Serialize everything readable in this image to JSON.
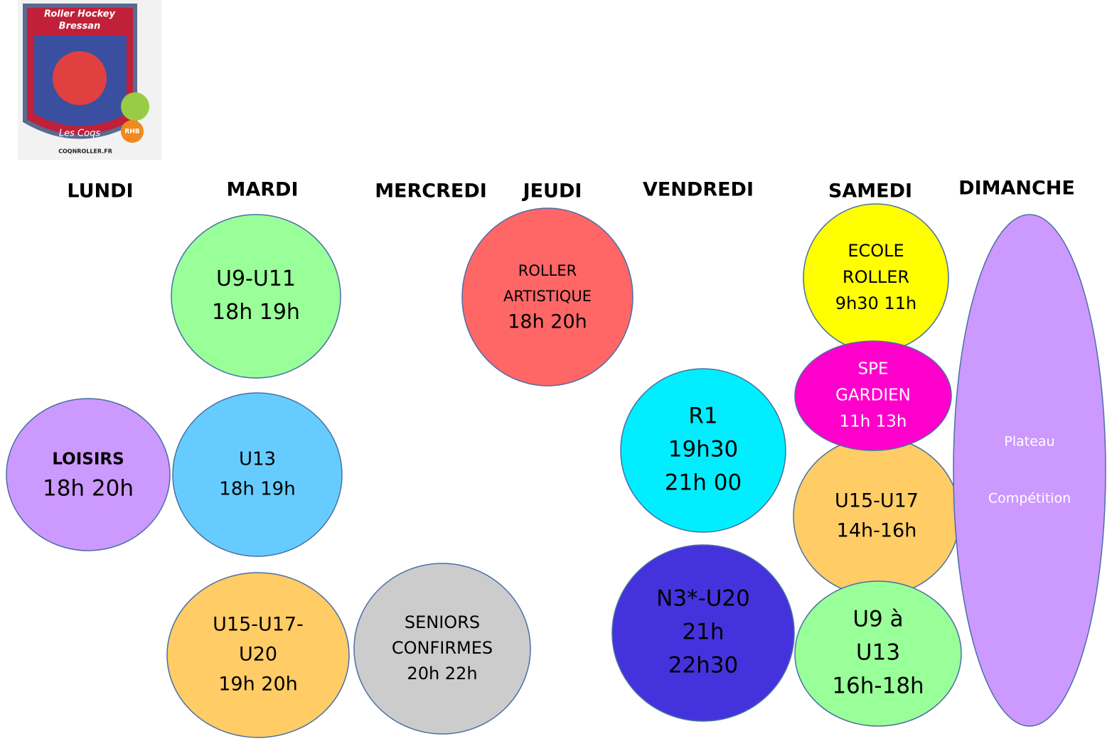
{
  "logo": {
    "line1": "Roller Hockey",
    "line2": "Bressan",
    "motto": "Les Coqs",
    "badge": "RHB",
    "website": "COQNROLLER.FR"
  },
  "days": [
    "LUNDI",
    "MARDI",
    "MERCREDI",
    "JEUDI",
    "VENDREDI",
    "SAMEDI",
    "DIMANCHE"
  ],
  "sessions": [
    {
      "lines": [
        "U9-U11",
        "18h 19h"
      ]
    },
    {
      "lines": [
        "U13",
        "18h 19h"
      ]
    },
    {
      "lines": [
        "LOISIRS",
        "18h 20h"
      ]
    },
    {
      "lines": [
        "U15-U17-",
        "U20",
        "19h 20h"
      ]
    },
    {
      "lines": [
        "SENIORS",
        "CONFIRMES",
        "20h 22h"
      ]
    },
    {
      "lines": [
        "ROLLER",
        "ARTISTIQUE",
        "18h 20h"
      ]
    },
    {
      "lines": [
        "R1",
        "19h30",
        "21h 00"
      ]
    },
    {
      "lines": [
        "N3*-U20",
        "21h",
        "22h30"
      ]
    },
    {
      "lines": [
        "ECOLE",
        "ROLLER",
        "9h30 11h"
      ]
    },
    {
      "lines": [
        "U15-U17",
        "14h-16h"
      ]
    },
    {
      "lines": [
        "U9 à",
        "U13",
        "16h-18h"
      ]
    },
    {
      "lines": [
        "SPE",
        "GARDIEN",
        "11h 13h"
      ]
    },
    {
      "lines": [
        "Plateau",
        "Compétition"
      ]
    }
  ]
}
